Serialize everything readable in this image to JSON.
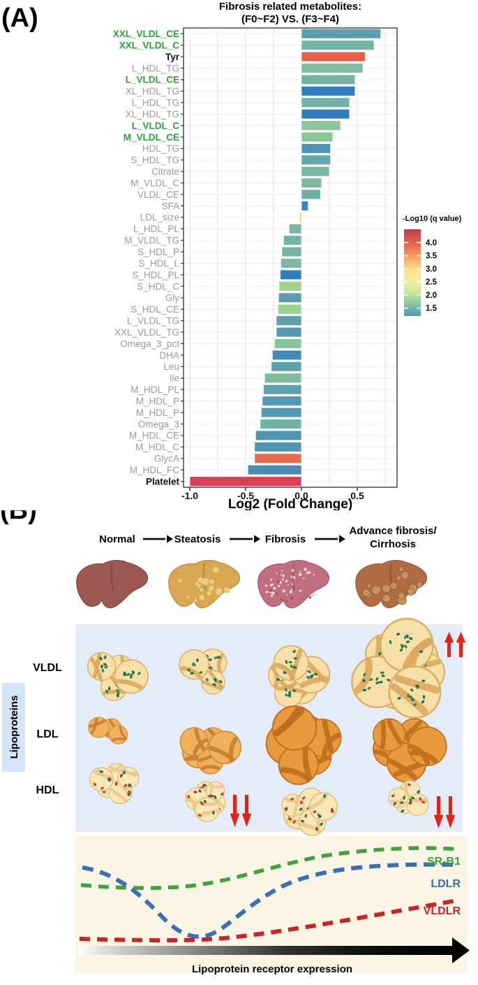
{
  "panel_a": {
    "label": "(A)",
    "title_line1": "Fibrosis related metabolites:",
    "title_line2": "(F0~F2) VS. (F3~F4)",
    "x_axis": {
      "label": "Log2 (Fold Change)",
      "ticks": [
        "-1.0",
        "-0.5",
        "0.0",
        "0.5"
      ],
      "tick_values": [
        -1.0,
        -0.5,
        0.0,
        0.5
      ]
    },
    "legend": {
      "title": "-Log10 (q value)",
      "ticks": [
        "4.0",
        "3.5",
        "3.0",
        "2.5",
        "2.0",
        "1.5"
      ],
      "tick_values": [
        4.0,
        3.5,
        3.0,
        2.5,
        2.0,
        1.5
      ],
      "range_top": 4.5,
      "range_bottom": 1.2,
      "gradient_top_to_bottom": [
        "#C0394E",
        "#D5544B",
        "#E56A4D",
        "#F08C59",
        "#F9B56C",
        "#FCD982",
        "#FAEC9C",
        "#E7F09E",
        "#C5E69B",
        "#9AD3A0",
        "#6FB6AB",
        "#4E99BB"
      ]
    },
    "chart_data": {
      "type": "bar",
      "orientation": "horizontal",
      "title": "Fibrosis related metabolites: (F0~F2) VS. (F3~F4)",
      "xlabel": "Log2 (Fold Change)",
      "xlim": [
        -1.06,
        0.86
      ],
      "grid": true,
      "color_scale": {
        "label": "-Log10 (q value)",
        "palette": "Spectral (red = high q significance, blue = low)",
        "tick_range": [
          1.5,
          4.0
        ]
      },
      "rows": [
        {
          "label": "XXL_VLDL_CE",
          "value": 0.71,
          "color": "#5C9FB3",
          "label_style": "green"
        },
        {
          "label": "XXL_VLDL_C",
          "value": 0.65,
          "color": "#76B5A6",
          "label_style": "green"
        },
        {
          "label": "Tyr",
          "value": 0.57,
          "color": "#E8604B",
          "label_style": "black"
        },
        {
          "label": "L_HDL_TG",
          "value": 0.55,
          "color": "#7FBD9D",
          "label_style": "gray"
        },
        {
          "label": "L_VLDL_CE",
          "value": 0.48,
          "color": "#74B2A8",
          "label_style": "green"
        },
        {
          "label": "XL_HDL_TG",
          "value": 0.48,
          "color": "#2F7FBC",
          "label_style": "gray"
        },
        {
          "label": "L_HDL_TG",
          "value": 0.43,
          "color": "#74B1A8",
          "label_style": "gray"
        },
        {
          "label": "XL_HDL_TG",
          "value": 0.43,
          "color": "#2F7FBC",
          "label_style": "gray"
        },
        {
          "label": "L_VLDL_C",
          "value": 0.35,
          "color": "#8AC59B",
          "label_style": "green"
        },
        {
          "label": "M_VLDL_CE",
          "value": 0.28,
          "color": "#8CC79A",
          "label_style": "green"
        },
        {
          "label": "HDL_TG",
          "value": 0.26,
          "color": "#4E93B4",
          "label_style": "gray"
        },
        {
          "label": "S_HDL_TG",
          "value": 0.26,
          "color": "#62A8AC",
          "label_style": "gray"
        },
        {
          "label": "Citrate",
          "value": 0.25,
          "color": "#74B7A2",
          "label_style": "gray"
        },
        {
          "label": "M_VLDL_C",
          "value": 0.18,
          "color": "#7CBBA0",
          "label_style": "gray"
        },
        {
          "label": "VLDL_CE",
          "value": 0.17,
          "color": "#6BAEA8",
          "label_style": "gray"
        },
        {
          "label": "SFA",
          "value": 0.06,
          "color": "#3C87B8",
          "label_style": "gray"
        },
        {
          "label": "LDL_size",
          "value": -0.015,
          "color": "#F3CE6E",
          "label_style": "gray"
        },
        {
          "label": "L_HDL_PL",
          "value": -0.11,
          "color": "#79B6A4",
          "label_style": "gray"
        },
        {
          "label": "M_VLDL_TG",
          "value": -0.16,
          "color": "#76B4A6",
          "label_style": "gray"
        },
        {
          "label": "S_HDL_P",
          "value": -0.175,
          "color": "#76B4A6",
          "label_style": "gray"
        },
        {
          "label": "S_HDL_L",
          "value": -0.185,
          "color": "#7FB5A3",
          "label_style": "gray"
        },
        {
          "label": "S_HDL_PL",
          "value": -0.19,
          "color": "#2E7EB8",
          "label_style": "gray"
        },
        {
          "label": "S_HDL_C",
          "value": -0.2,
          "color": "#9FD48A",
          "label_style": "gray"
        },
        {
          "label": "Gly",
          "value": -0.205,
          "color": "#5E9BAD",
          "label_style": "gray"
        },
        {
          "label": "S_HDL_CE",
          "value": -0.21,
          "color": "#9BD28D",
          "label_style": "gray"
        },
        {
          "label": "L_VLDL_TG",
          "value": -0.225,
          "color": "#609EAC",
          "label_style": "gray"
        },
        {
          "label": "XXL_VLDL_TG",
          "value": -0.225,
          "color": "#5697B3",
          "label_style": "gray"
        },
        {
          "label": "Omega_3_pct",
          "value": -0.24,
          "color": "#85C79B",
          "label_style": "gray"
        },
        {
          "label": "DHA",
          "value": -0.26,
          "color": "#4489BA",
          "label_style": "gray"
        },
        {
          "label": "Leu",
          "value": -0.27,
          "color": "#5FA0AC",
          "label_style": "gray"
        },
        {
          "label": "Ile",
          "value": -0.33,
          "color": "#7FBD9A",
          "label_style": "gray"
        },
        {
          "label": "M_HDL_PL",
          "value": -0.34,
          "color": "#5C9FAE",
          "label_style": "gray"
        },
        {
          "label": "M_HDL_P",
          "value": -0.35,
          "color": "#5499B4",
          "label_style": "gray"
        },
        {
          "label": "M_HDL_P",
          "value": -0.36,
          "color": "#5499B4",
          "label_style": "gray"
        },
        {
          "label": "Omega_3",
          "value": -0.37,
          "color": "#6FB3A4",
          "label_style": "gray"
        },
        {
          "label": "M_HDL_CE",
          "value": -0.41,
          "color": "#4F95B3",
          "label_style": "gray"
        },
        {
          "label": "M_HDL_C",
          "value": -0.42,
          "color": "#4F95B3",
          "label_style": "gray"
        },
        {
          "label": "GlycA",
          "value": -0.42,
          "color": "#E9694C",
          "label_style": "gray"
        },
        {
          "label": "M_HDL_FC",
          "value": -0.48,
          "color": "#478BB5",
          "label_style": "gray"
        },
        {
          "label": "Platelet",
          "value": -1.0,
          "color": "#D84055",
          "label_style": "black"
        }
      ]
    }
  },
  "panel_b": {
    "label": "(B)",
    "stages": [
      {
        "label": "Normal"
      },
      {
        "label": "Steatosis"
      },
      {
        "label": "Fibrosis"
      },
      {
        "label": "Advance fibrosis/",
        "label2": "Cirrhosis"
      }
    ],
    "sidebar_label": "Lipoproteins",
    "lipoprotein_rows": [
      {
        "label": "VLDL",
        "trend": "increases with fibrosis, double red up-arrows at cirrhosis"
      },
      {
        "label": "LDL",
        "trend": "particle clusters enlarge through fibrosis"
      },
      {
        "label": "HDL",
        "trend": "decreases, double red down-arrows at steatosis and cirrhosis"
      }
    ],
    "annotation_arrows": [
      {
        "row": "VLDL",
        "stage": 4,
        "direction": "up"
      },
      {
        "row": "HDL",
        "stage": 2,
        "direction": "down"
      },
      {
        "row": "HDL",
        "stage": 4,
        "direction": "down"
      }
    ],
    "receptors": [
      {
        "name": "SR-B1",
        "color": "#3FA33C"
      },
      {
        "name": "LDLR",
        "color": "#3A6FB8"
      },
      {
        "name": "VLDLR",
        "color": "#CB2428"
      }
    ],
    "x_axis_caption": "Lipoprotein receptor expression",
    "colors": {
      "lipoprotein_panel_bg": "#E4ECF9",
      "sidebar_bg": "#D4E4FA",
      "receptor_panel_bg": "#FAF5E4",
      "annotation_arrow_red": "#E02317",
      "liver_normal": "#9D5951",
      "liver_steatosis": "#D7A751",
      "liver_fibrosis": "#C16E81",
      "liver_cirrhosis": "#AE6B44"
    }
  }
}
